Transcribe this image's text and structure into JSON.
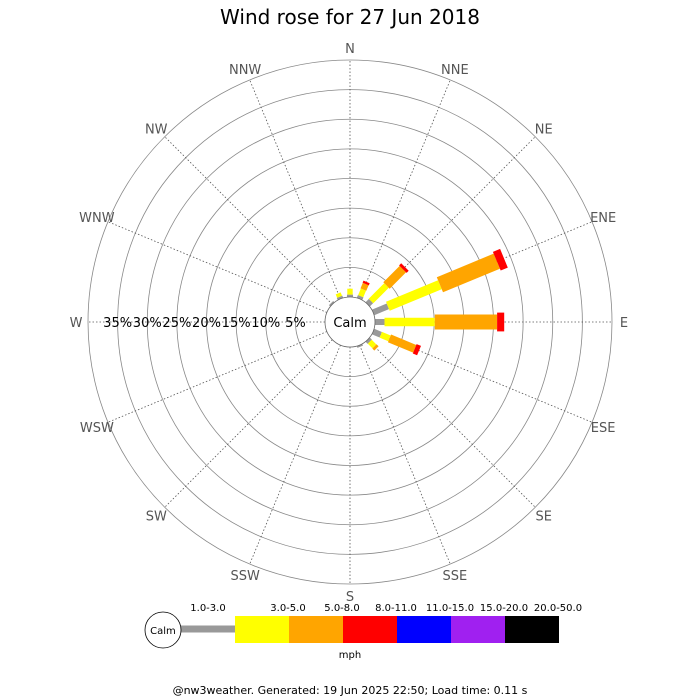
{
  "chart_data": {
    "type": "wind-rose",
    "title": "Wind rose for 27 Jun 2018",
    "directions": [
      "N",
      "NNE",
      "NE",
      "ENE",
      "E",
      "ESE",
      "SE",
      "SSE",
      "S",
      "SSW",
      "SW",
      "WSW",
      "W",
      "WNW",
      "NW",
      "NNW"
    ],
    "ring_labels": [
      "35%",
      "30%",
      "25%",
      "20%",
      "15%",
      "10%",
      "5%"
    ],
    "rmax_percent": 40,
    "calm_label": "Calm",
    "speed_bins": [
      {
        "label": "1.0-3.0",
        "color": "#999999"
      },
      {
        "label": "3.0-5.0",
        "color": "#ffff00"
      },
      {
        "label": "5.0-8.0",
        "color": "#ffa500"
      },
      {
        "label": "8.0-11.0",
        "color": "#ff0000"
      },
      {
        "label": "11.0-15.0",
        "color": "#0000ff"
      },
      {
        "label": "15.0-20.0",
        "color": "#a020f0"
      },
      {
        "label": "20.0-50.0",
        "color": "#000000"
      }
    ],
    "speed_unit": "mph",
    "series": [
      {
        "direction": "N",
        "values": [
          0.4,
          1.0,
          0.0,
          0.0,
          0,
          0,
          0
        ]
      },
      {
        "direction": "NNE",
        "values": [
          0.5,
          1.2,
          1.0,
          0.4,
          0,
          0,
          0
        ]
      },
      {
        "direction": "NE",
        "values": [
          0.8,
          3.7,
          3.9,
          0.5,
          0,
          0,
          0
        ]
      },
      {
        "direction": "ENE",
        "values": [
          2.7,
          9.5,
          10.4,
          1.3,
          0,
          0,
          0
        ]
      },
      {
        "direction": "E",
        "values": [
          1.6,
          8.5,
          10.5,
          1.2,
          0,
          0,
          0
        ]
      },
      {
        "direction": "ESE",
        "values": [
          1.4,
          1.6,
          4.6,
          0.8,
          0,
          0,
          0
        ]
      },
      {
        "direction": "SE",
        "values": [
          0.5,
          1.1,
          0.5,
          0.0,
          0,
          0,
          0
        ]
      },
      {
        "direction": "SSE",
        "values": [
          0.3,
          0.0,
          0.0,
          0.0,
          0,
          0,
          0
        ]
      },
      {
        "direction": "S",
        "values": [
          0,
          0,
          0,
          0,
          0,
          0,
          0
        ]
      },
      {
        "direction": "SSW",
        "values": [
          0,
          0,
          0,
          0,
          0,
          0,
          0
        ]
      },
      {
        "direction": "SW",
        "values": [
          0,
          0,
          0,
          0,
          0,
          0,
          0
        ]
      },
      {
        "direction": "WSW",
        "values": [
          0,
          0,
          0,
          0,
          0,
          0,
          0
        ]
      },
      {
        "direction": "W",
        "values": [
          0,
          0,
          0,
          0,
          0,
          0,
          0
        ]
      },
      {
        "direction": "WNW",
        "values": [
          0,
          0,
          0,
          0,
          0,
          0,
          0
        ]
      },
      {
        "direction": "NW",
        "values": [
          0.3,
          0.0,
          0.0,
          0.0,
          0,
          0,
          0
        ]
      },
      {
        "direction": "NNW",
        "values": [
          0.4,
          0.6,
          0.0,
          0.0,
          0,
          0,
          0
        ]
      }
    ]
  },
  "footer": "@nw3weather.  Generated: 19 Jun 2025 22:50; Load time: 0.11 s"
}
